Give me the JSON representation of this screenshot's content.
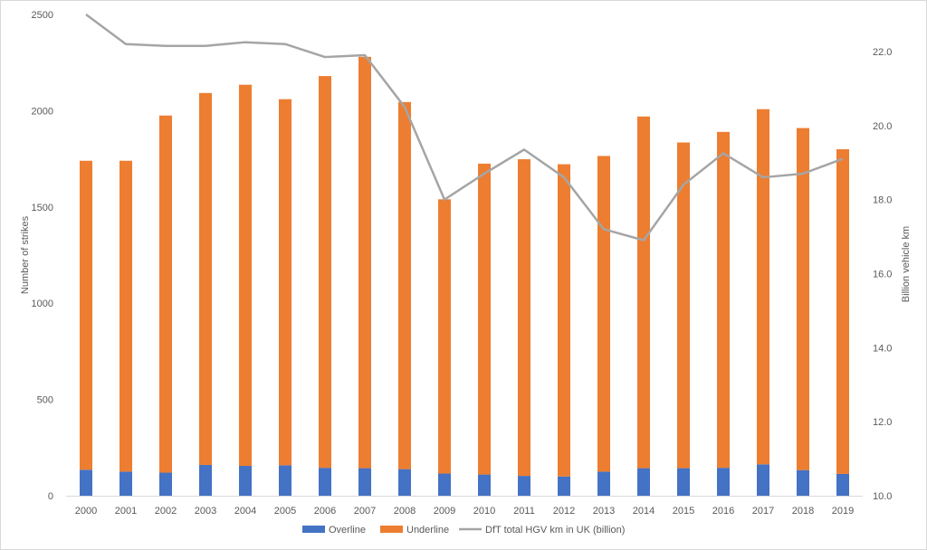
{
  "chart_data": {
    "type": "bar",
    "stacked": true,
    "categories": [
      "2000",
      "2001",
      "2002",
      "2003",
      "2004",
      "2005",
      "2006",
      "2007",
      "2008",
      "2009",
      "2010",
      "2011",
      "2012",
      "2013",
      "2014",
      "2015",
      "2016",
      "2017",
      "2018",
      "2019"
    ],
    "series": [
      {
        "name": "Overline",
        "type": "bar",
        "axis": "left",
        "color": "#4472c4",
        "values": [
          135,
          125,
          120,
          160,
          155,
          158,
          145,
          143,
          138,
          115,
          110,
          103,
          100,
          125,
          143,
          143,
          145,
          163,
          133,
          113
        ]
      },
      {
        "name": "Underline",
        "type": "bar",
        "axis": "left",
        "color": "#ed7d31",
        "values": [
          1605,
          1615,
          1855,
          1932,
          1980,
          1902,
          2035,
          2137,
          1907,
          1425,
          1615,
          1645,
          1622,
          1640,
          1827,
          1692,
          1745,
          1845,
          1777,
          1687
        ]
      },
      {
        "name": "DfT total HGV km in UK (billion)",
        "type": "line",
        "axis": "right",
        "color": "#a5a5a5",
        "values": [
          23.0,
          22.2,
          22.15,
          22.15,
          22.25,
          22.2,
          21.85,
          21.9,
          20.5,
          18.0,
          18.7,
          19.35,
          18.6,
          17.2,
          16.9,
          18.4,
          19.25,
          18.6,
          18.7,
          19.1
        ]
      }
    ],
    "ylabel": "Number  of strikes",
    "y2label": "Billion vehicle km",
    "ylim": [
      0,
      2500
    ],
    "y2lim": [
      10.0,
      23.0
    ],
    "yticks": [
      "0",
      "500",
      "1000",
      "1500",
      "2000",
      "2500"
    ],
    "y2ticks": [
      "10.0",
      "12.0",
      "14.0",
      "16.0",
      "18.0",
      "20.0",
      "22.0"
    ],
    "grid": false,
    "legend_position": "bottom"
  }
}
